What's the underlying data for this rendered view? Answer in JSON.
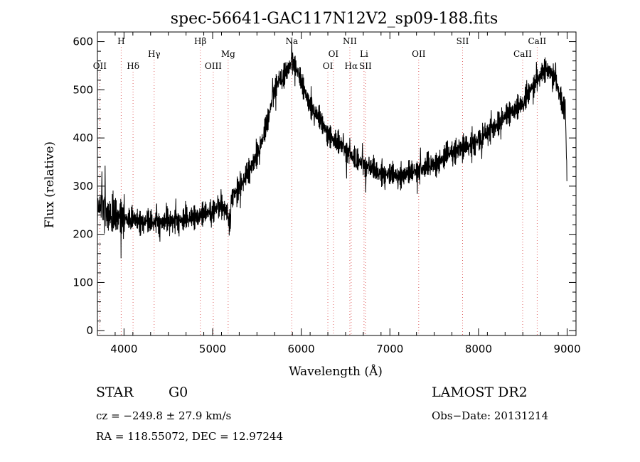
{
  "chart_data": {
    "type": "line",
    "title": "spec-56641-GAC117N12V2_sp09-188.fits",
    "xlabel": "Wavelength (Å)",
    "ylabel": "Flux (relative)",
    "xlim": [
      3700,
      9100
    ],
    "ylim": [
      -10,
      620
    ],
    "x_ticks": [
      4000,
      5000,
      6000,
      7000,
      8000,
      9000
    ],
    "y_ticks": [
      0,
      100,
      200,
      300,
      400,
      500,
      600
    ],
    "grid": false,
    "line_color": "#000000",
    "marker_color": "#e06060",
    "series": [
      {
        "x": [
          3700,
          3750,
          3800,
          3850,
          3900,
          3950,
          4000,
          4050,
          4100,
          4150,
          4200,
          4300,
          4400,
          4500,
          4600,
          4700,
          4800,
          4850,
          4900,
          4950,
          5000,
          5050,
          5100,
          5150,
          5190,
          5210,
          5250,
          5300,
          5350,
          5400,
          5450,
          5500,
          5550,
          5600,
          5650,
          5700,
          5750,
          5800,
          5850,
          5900,
          5950,
          6000,
          6050,
          6100,
          6150,
          6200,
          6250,
          6300,
          6350,
          6400,
          6450,
          6500,
          6550,
          6600,
          6650,
          6700,
          6750,
          6800,
          6850,
          6900,
          6950,
          7000,
          7100,
          7200,
          7300,
          7400,
          7450,
          7500,
          7600,
          7650,
          7700,
          7800,
          7900,
          8000,
          8100,
          8200,
          8300,
          8400,
          8500,
          8550,
          8600,
          8650,
          8700,
          8750,
          8800,
          8850,
          8900,
          8950,
          8980,
          9000
        ],
        "y": [
          255,
          260,
          245,
          240,
          235,
          240,
          235,
          232,
          230,
          228,
          228,
          225,
          225,
          228,
          228,
          232,
          238,
          240,
          242,
          245,
          250,
          255,
          255,
          250,
          218,
          275,
          285,
          295,
          310,
          330,
          345,
          365,
          390,
          420,
          460,
          500,
          520,
          525,
          545,
          560,
          540,
          515,
          490,
          470,
          455,
          440,
          425,
          410,
          400,
          390,
          385,
          375,
          365,
          355,
          352,
          345,
          340,
          335,
          330,
          328,
          325,
          322,
          322,
          325,
          330,
          338,
          345,
          345,
          355,
          368,
          372,
          378,
          385,
          395,
          410,
          425,
          445,
          460,
          470,
          490,
          505,
          515,
          530,
          540,
          540,
          530,
          500,
          465,
          460,
          300
        ]
      }
    ],
    "lines": [
      {
        "label": "OII",
        "x": 3727,
        "row": 3
      },
      {
        "label": "H",
        "x": 3968,
        "row": 1
      },
      {
        "label": "Hδ",
        "x": 4102,
        "row": 3
      },
      {
        "label": "Hγ",
        "x": 4340,
        "row": 2
      },
      {
        "label": "Hβ",
        "x": 4861,
        "row": 1
      },
      {
        "label": "OIII",
        "x": 5007,
        "row": 3
      },
      {
        "label": "Mg",
        "x": 5175,
        "row": 2
      },
      {
        "label": "Na",
        "x": 5893,
        "row": 1
      },
      {
        "label": "OI",
        "x": 6300,
        "row": 3
      },
      {
        "label": "OI",
        "x": 6363,
        "row": 2
      },
      {
        "label": "NII",
        "x": 6548,
        "row": 1
      },
      {
        "label": "Hα",
        "x": 6563,
        "row": 3
      },
      {
        "label": "Li",
        "x": 6708,
        "row": 2
      },
      {
        "label": "SII",
        "x": 6724,
        "row": 3
      },
      {
        "label": "OII",
        "x": 7325,
        "row": 2
      },
      {
        "label": "SII",
        "x": 7820,
        "row": 1
      },
      {
        "label": "CaII",
        "x": 8498,
        "row": 2
      },
      {
        "label": "CaII",
        "x": 8662,
        "row": 1
      }
    ]
  },
  "info": {
    "class_label": "STAR",
    "subclass": "G0",
    "redshift": "cz = −249.8 ± 27.9 km/s",
    "coords": "RA = 118.55072, DEC =  12.97244",
    "survey": "LAMOST DR2",
    "obs_date": "Obs−Date: 20131214"
  }
}
